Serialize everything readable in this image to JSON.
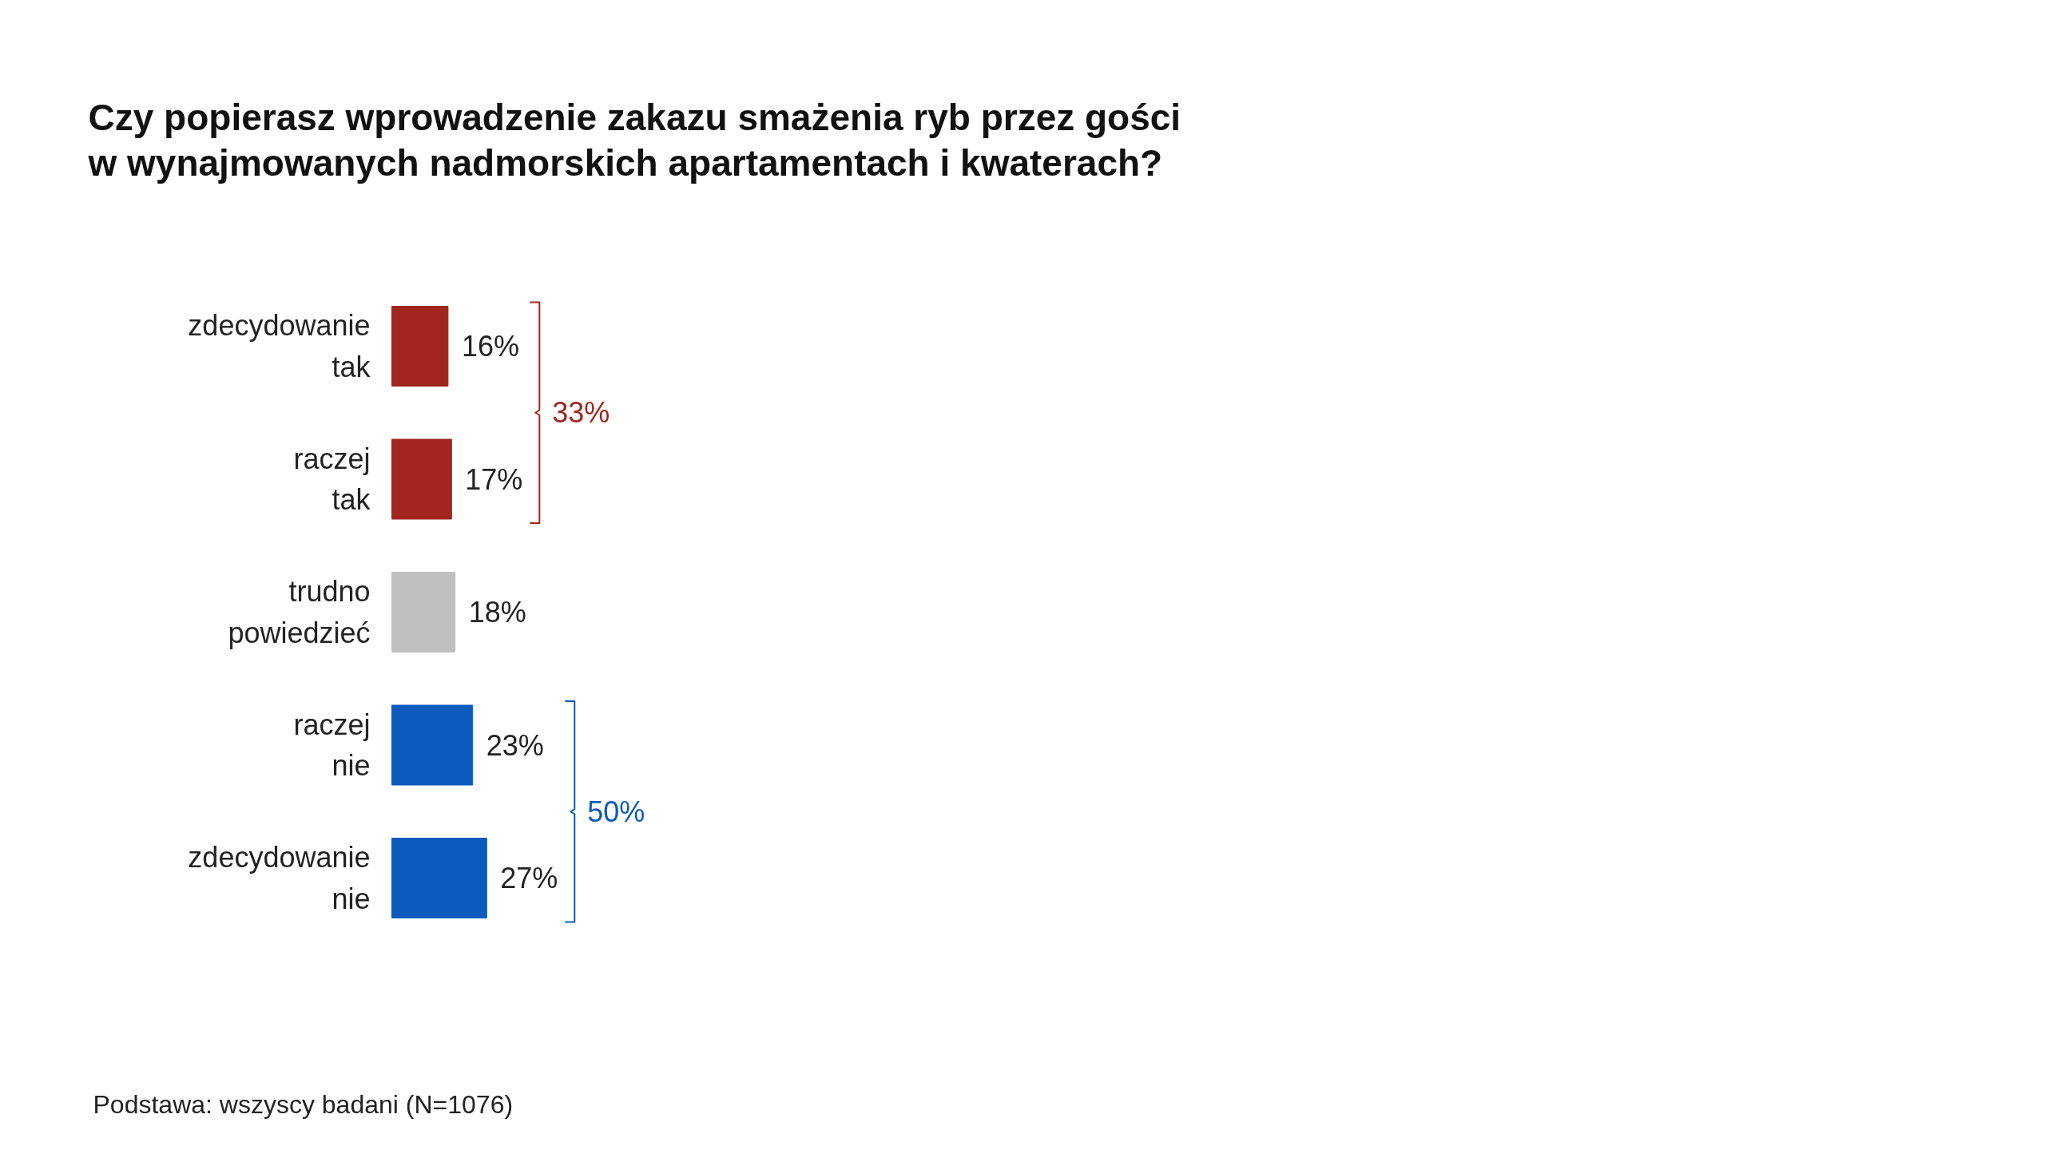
{
  "chart_data": {
    "type": "bar",
    "orientation": "horizontal",
    "title": "Czy popierasz wprowadzenie zakazu smażenia ryb przez gości w wynajmowanych nadmorskich apartamentach i kwaterach?",
    "categories": [
      "zdecydowanie tak",
      "raczej tak",
      "trudno powiedzieć",
      "raczej nie",
      "zdecydowanie nie"
    ],
    "values": [
      16,
      17,
      18,
      23,
      27
    ],
    "colors": [
      "#a0261f",
      "#a0261f",
      "#bfbfbf",
      "#0b5bbf",
      "#0b5bbf"
    ],
    "value_labels": [
      "16%",
      "17%",
      "18%",
      "23%",
      "27%"
    ],
    "annotations": [
      "33%",
      "50%",
      "Podstawa: wszyscy badani (N=1076)"
    ],
    "grid": false
  }
}
